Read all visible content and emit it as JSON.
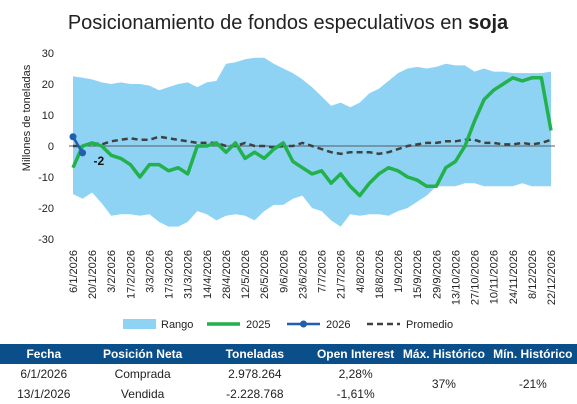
{
  "chart_data": {
    "type": "line",
    "title_prefix": "Posicionamiento de fondos especulativos en ",
    "title_emphasis": "soja",
    "ylabel": "Millones de toneladas",
    "ylim": [
      -30,
      30
    ],
    "yticks": [
      -30,
      -20,
      -10,
      0,
      10,
      20,
      30
    ],
    "x_tick_labels": [
      "6/1/2026",
      "20/1/2026",
      "3/2/2026",
      "17/2/2026",
      "3/3/2026",
      "17/3/2026",
      "31/3/2026",
      "14/4/2026",
      "28/4/2026",
      "12/5/2026",
      "26/5/2026",
      "9/6/2026",
      "23/6/2026",
      "7/7/2026",
      "21/7/2026",
      "4/8/2026",
      "18/8/2026",
      "1/9/2026",
      "15/9/2026",
      "29/9/2026",
      "13/10/2026",
      "27/10/2026",
      "10/11/2026",
      "24/11/2026",
      "8/12/2026",
      "22/12/2026"
    ],
    "x_step_weeks": 1,
    "range_upper": [
      22.5,
      22,
      21.5,
      20.5,
      20,
      20.5,
      20,
      20,
      19.5,
      18,
      19,
      20,
      20.5,
      19,
      20.5,
      21,
      26.5,
      27,
      28,
      28.5,
      28.5,
      26.5,
      25,
      23.5,
      21.5,
      19,
      16,
      13,
      14,
      12.5,
      14,
      17,
      18.5,
      21,
      23.5,
      25,
      25.5,
      25,
      25.5,
      26.5,
      26,
      26,
      24,
      25,
      24,
      24,
      23.5,
      23.5,
      23.5,
      23.5,
      24
    ],
    "range_lower": [
      -15.5,
      -17,
      -15,
      -18.5,
      -22.5,
      -22,
      -22,
      -22.5,
      -22,
      -24.5,
      -26,
      -26,
      -24.5,
      -21,
      -22,
      -24,
      -22.5,
      -22,
      -22.5,
      -24,
      -21,
      -19,
      -19,
      -17,
      -16,
      -20,
      -21,
      -24,
      -26,
      -22,
      -22.5,
      -22,
      -22,
      -22.5,
      -21,
      -20,
      -18,
      -16,
      -13,
      -13,
      -13,
      -12,
      -12,
      -13,
      -13,
      -13,
      -13,
      -12,
      -13,
      -13,
      -13
    ],
    "series": [
      {
        "name": "2025",
        "values": [
          -7,
          0,
          1,
          0,
          -3,
          -4,
          -6,
          -10,
          -6,
          -6,
          -8,
          -7,
          -9,
          0,
          0,
          1,
          -2,
          1,
          -4,
          -2,
          -4,
          -1,
          1,
          -5,
          -7,
          -9,
          -8,
          -12,
          -9,
          -13,
          -16,
          -12,
          -9,
          -7,
          -8,
          -10,
          -11,
          -13,
          -13,
          -7,
          -5,
          0,
          8,
          15,
          18,
          20,
          22,
          21,
          22,
          22,
          5
        ]
      },
      {
        "name": "2026",
        "values": [
          2.978,
          -2.229
        ]
      },
      {
        "name": "Promedio",
        "values": [
          0,
          0,
          1,
          0.5,
          1.5,
          2,
          2.5,
          2,
          2,
          3,
          2.5,
          2,
          1.5,
          1,
          1,
          1,
          0,
          0,
          1,
          0,
          0,
          -0.5,
          0,
          0,
          1,
          0,
          -1,
          -2,
          -2.5,
          -2,
          -2,
          -2,
          -2.5,
          -2,
          -1,
          0,
          0.5,
          1,
          1,
          1.5,
          1.5,
          2,
          2,
          1,
          1,
          0.5,
          0.5,
          1,
          0.5,
          1,
          2
        ]
      }
    ],
    "legend": [
      "Rango",
      "2025",
      "2026",
      "Promedio"
    ],
    "legend_position": "bottom",
    "annotation": "-2",
    "colors": {
      "range": "#8fd3f4",
      "s2025": "#22b14c",
      "s2026": "#1f5fae",
      "promedio": "#404040",
      "zero": "#5a5a5a"
    }
  },
  "table": {
    "headers": [
      "Fecha",
      "Posición Neta",
      "Toneladas",
      "Open Interest",
      "Máx. Histórico",
      "Mín. Histórico"
    ],
    "rows": [
      {
        "fecha": "6/1/2026",
        "posicion": "Comprada",
        "toneladas": "2.978.264",
        "oi": "2,28%"
      },
      {
        "fecha": "13/1/2026",
        "posicion": "Vendida",
        "toneladas": "-2.228.768",
        "oi": "-1,61%"
      }
    ],
    "max_hist": "37%",
    "min_hist": "-21%",
    "header_color": "#0a4f8a"
  }
}
